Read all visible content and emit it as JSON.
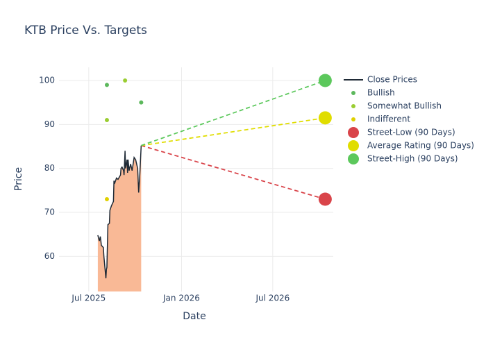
{
  "chart_data": {
    "type": "line",
    "title": "KTB Price Vs. Targets",
    "x_label": "Date",
    "y_label": "Price",
    "xlim": [
      "2025-05-03",
      "2026-10-29"
    ],
    "xticks": [
      {
        "value": "2025-07-01",
        "label": "Jul 2025"
      },
      {
        "value": "2026-01-01",
        "label": "Jan 2026"
      },
      {
        "value": "2026-07-01",
        "label": "Jul 2026"
      }
    ],
    "ylim": [
      52,
      103
    ],
    "yticks": [
      60,
      70,
      80,
      90,
      100
    ],
    "grid": true,
    "series": [
      {
        "name": "Close Prices",
        "kind": "line",
        "color": "#1f2a36",
        "fill_color": "#f9b996",
        "x": [
          "2025-07-19",
          "2025-07-22",
          "2025-07-24",
          "2025-07-26",
          "2025-07-30",
          "2025-07-31",
          "2025-08-04",
          "2025-08-05",
          "2025-08-06",
          "2025-08-08",
          "2025-08-11",
          "2025-08-12",
          "2025-08-15",
          "2025-08-19",
          "2025-08-20",
          "2025-08-21",
          "2025-08-25",
          "2025-08-28",
          "2025-09-02",
          "2025-09-03",
          "2025-09-05",
          "2025-09-08",
          "2025-09-09",
          "2025-09-11",
          "2025-09-12",
          "2025-09-15",
          "2025-09-16",
          "2025-09-17",
          "2025-09-19",
          "2025-09-22",
          "2025-09-25",
          "2025-09-29",
          "2025-10-02",
          "2025-10-03",
          "2025-10-06",
          "2025-10-08",
          "2025-10-10",
          "2025-10-13"
        ],
        "values": [
          64.8,
          63.5,
          64.5,
          62.5,
          62,
          60,
          55,
          57,
          57.5,
          67.2,
          67.5,
          70.5,
          71.5,
          72.5,
          77.2,
          76.5,
          77.8,
          77.5,
          78.5,
          80,
          80.3,
          79.5,
          78.5,
          84,
          80,
          82,
          79,
          82,
          79.5,
          81,
          79.5,
          82.5,
          82,
          81.5,
          80,
          74.5,
          78,
          85.2
        ]
      },
      {
        "name": "Bullish",
        "kind": "scatter",
        "color": "#5cb85c",
        "x": [
          "2025-08-06",
          "2025-10-13"
        ],
        "values": [
          99,
          95
        ]
      },
      {
        "name": "Somewhat Bullish",
        "kind": "scatter",
        "color": "#9acd32",
        "x": [
          "2025-08-06",
          "2025-09-11"
        ],
        "values": [
          91,
          100
        ]
      },
      {
        "name": "Indifferent",
        "kind": "scatter",
        "color": "#e0d000",
        "x": [
          "2025-08-06"
        ],
        "values": [
          73
        ]
      },
      {
        "name": "Street-Low (90 Days)",
        "kind": "target",
        "color": "#d9444a",
        "x": [
          "2026-10-13"
        ],
        "values": [
          73
        ]
      },
      {
        "name": "Average Rating (90 Days)",
        "kind": "target",
        "color": "#e0dd00",
        "x": [
          "2026-10-13"
        ],
        "values": [
          91.5
        ]
      },
      {
        "name": "Street-High (90 Days)",
        "kind": "target",
        "color": "#5cc85c",
        "x": [
          "2026-10-13"
        ],
        "values": [
          100
        ]
      }
    ]
  }
}
